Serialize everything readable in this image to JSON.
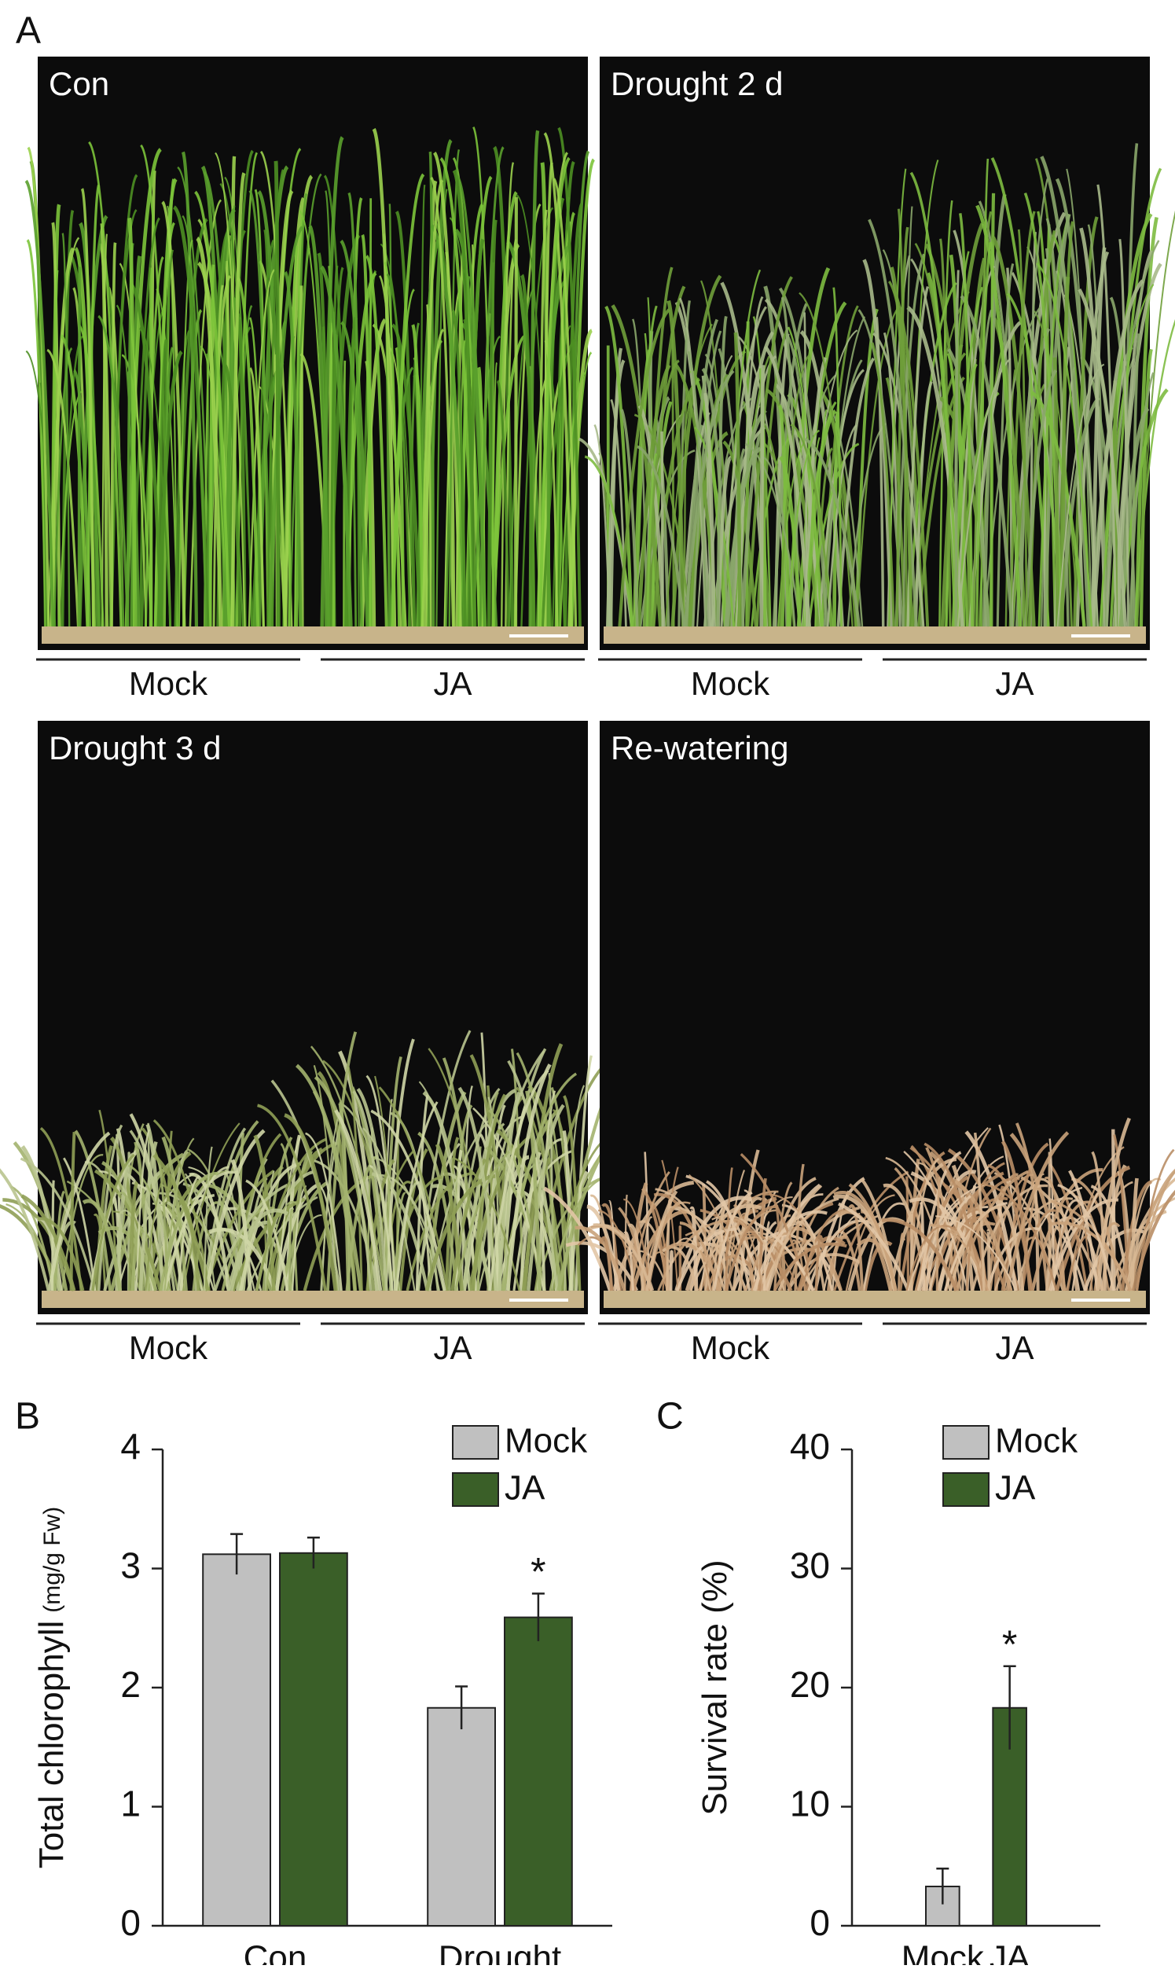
{
  "panel_a": {
    "label": "A",
    "photos": [
      {
        "title": "Con",
        "groups": [
          "Mock",
          "JA"
        ]
      },
      {
        "title": "Drought 2 d",
        "groups": [
          "Mock",
          "JA"
        ]
      },
      {
        "title": "Drought 3 d",
        "groups": [
          "Mock",
          "JA"
        ]
      },
      {
        "title": "Re-watering",
        "groups": [
          "Mock",
          "JA"
        ]
      }
    ]
  },
  "chart_data": [
    {
      "type": "bar",
      "panel_label": "B",
      "ylabel": "Total chlorophyll",
      "ylabel_unit": "(mg/g Fw)",
      "categories": [
        "Con",
        "Drought"
      ],
      "series": [
        {
          "name": "Mock",
          "color": "#c0c0c0",
          "values": [
            3.12,
            1.83
          ],
          "errors": [
            0.17,
            0.18
          ]
        },
        {
          "name": "JA",
          "color": "#3a5f28",
          "values": [
            3.13,
            2.59
          ],
          "errors": [
            0.13,
            0.2
          ]
        }
      ],
      "annotations": [
        {
          "text": "*",
          "category": 1,
          "series": 1
        }
      ],
      "ylim": [
        0,
        4
      ],
      "yticks": [
        0,
        1,
        2,
        3,
        4
      ],
      "legend": "upper right"
    },
    {
      "type": "bar",
      "panel_label": "C",
      "ylabel": "Survival rate (%)",
      "categories": [
        "Mock",
        "JA"
      ],
      "values": [
        3.3,
        18.3
      ],
      "errors": [
        1.5,
        3.5
      ],
      "colors": [
        "#c0c0c0",
        "#3a5f28"
      ],
      "annotations": [
        {
          "text": "*",
          "index": 1
        }
      ],
      "ylim": [
        0,
        40
      ],
      "yticks": [
        0,
        10,
        20,
        30,
        40
      ],
      "legend": "upper right"
    }
  ]
}
